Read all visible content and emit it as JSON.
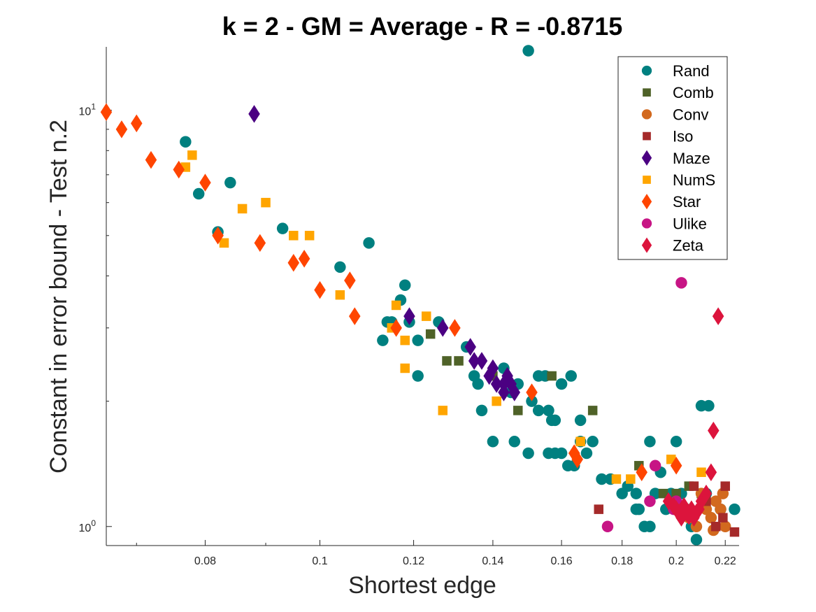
{
  "chart_data": {
    "type": "scatter",
    "title": "k = 2 - GM = Average - R = -0.8715",
    "xlabel": "Shortest edge",
    "ylabel": "Constant in error bound - Test n.2",
    "xscale": "log",
    "yscale": "log",
    "xlim": [
      0.066,
      0.226
    ],
    "ylim": [
      0.9,
      14.2
    ],
    "xticks": [
      0.08,
      0.1,
      0.12,
      0.14,
      0.16,
      0.18,
      0.2,
      0.22
    ],
    "xticklabels": [
      "0.08",
      "0.1",
      "0.12",
      "0.14",
      "0.16",
      "0.18",
      "0.2",
      "0.22"
    ],
    "yticks": [
      {
        "value": 1,
        "base": "10",
        "exp": "0"
      },
      {
        "value": 10,
        "base": "10",
        "exp": "1"
      }
    ],
    "legend_position": "top-right",
    "series": [
      {
        "name": "Rand",
        "marker": "circle",
        "color": "#008080",
        "points": [
          [
            0.15,
            13.9
          ],
          [
            0.077,
            8.4
          ],
          [
            0.079,
            6.3
          ],
          [
            0.084,
            6.7
          ],
          [
            0.082,
            5.1
          ],
          [
            0.093,
            5.2
          ],
          [
            0.104,
            4.2
          ],
          [
            0.11,
            4.8
          ],
          [
            0.118,
            3.8
          ],
          [
            0.117,
            3.5
          ],
          [
            0.115,
            3.1
          ],
          [
            0.114,
            3.1
          ],
          [
            0.119,
            3.1
          ],
          [
            0.126,
            3.1
          ],
          [
            0.113,
            2.8
          ],
          [
            0.121,
            2.8
          ],
          [
            0.133,
            2.7
          ],
          [
            0.121,
            2.3
          ],
          [
            0.135,
            2.3
          ],
          [
            0.136,
            2.2
          ],
          [
            0.143,
            2.4
          ],
          [
            0.145,
            2.1
          ],
          [
            0.147,
            2.2
          ],
          [
            0.151,
            2.0
          ],
          [
            0.153,
            2.3
          ],
          [
            0.155,
            2.3
          ],
          [
            0.153,
            1.9
          ],
          [
            0.156,
            1.9
          ],
          [
            0.158,
            1.8
          ],
          [
            0.16,
            2.2
          ],
          [
            0.163,
            2.3
          ],
          [
            0.166,
            1.8
          ],
          [
            0.157,
            1.8
          ],
          [
            0.137,
            1.9
          ],
          [
            0.14,
            1.6
          ],
          [
            0.146,
            1.6
          ],
          [
            0.15,
            1.5
          ],
          [
            0.156,
            1.5
          ],
          [
            0.158,
            1.5
          ],
          [
            0.16,
            1.5
          ],
          [
            0.162,
            1.4
          ],
          [
            0.164,
            1.4
          ],
          [
            0.166,
            1.6
          ],
          [
            0.168,
            1.5
          ],
          [
            0.17,
            1.6
          ],
          [
            0.173,
            1.3
          ],
          [
            0.176,
            1.3
          ],
          [
            0.18,
            1.2
          ],
          [
            0.182,
            1.25
          ],
          [
            0.185,
            1.2
          ],
          [
            0.185,
            1.1
          ],
          [
            0.186,
            1.1
          ],
          [
            0.188,
            1.0
          ],
          [
            0.19,
            1.0
          ],
          [
            0.19,
            1.6
          ],
          [
            0.192,
            1.2
          ],
          [
            0.194,
            1.35
          ],
          [
            0.196,
            1.1
          ],
          [
            0.198,
            1.2
          ],
          [
            0.2,
            1.6
          ],
          [
            0.202,
            1.2
          ],
          [
            0.204,
            1.1
          ],
          [
            0.206,
            1.0
          ],
          [
            0.208,
            0.93
          ],
          [
            0.21,
            1.95
          ],
          [
            0.213,
            1.95
          ],
          [
            0.212,
            1.2
          ],
          [
            0.218,
            1.1
          ],
          [
            0.224,
            1.1
          ]
        ]
      },
      {
        "name": "Comb",
        "marker": "square",
        "color": "#4f6228",
        "points": [
          [
            0.124,
            2.9
          ],
          [
            0.128,
            2.5
          ],
          [
            0.131,
            2.5
          ],
          [
            0.14,
            2.3
          ],
          [
            0.147,
            1.9
          ],
          [
            0.157,
            2.3
          ],
          [
            0.17,
            1.9
          ],
          [
            0.186,
            1.4
          ],
          [
            0.195,
            1.2
          ],
          [
            0.2,
            1.2
          ],
          [
            0.205,
            1.25
          ],
          [
            0.21,
            1.2
          ]
        ]
      },
      {
        "name": "Conv",
        "marker": "circle",
        "color": "#d2691e",
        "points": [
          [
            0.205,
            1.05
          ],
          [
            0.208,
            1.0
          ],
          [
            0.21,
            1.2
          ],
          [
            0.212,
            1.1
          ],
          [
            0.214,
            1.05
          ],
          [
            0.216,
            1.15
          ],
          [
            0.218,
            1.1
          ],
          [
            0.22,
            1.0
          ],
          [
            0.215,
            0.98
          ],
          [
            0.219,
            1.2
          ]
        ]
      },
      {
        "name": "Iso",
        "marker": "square",
        "color": "#a52a2a",
        "points": [
          [
            0.172,
            1.1
          ],
          [
            0.207,
            1.25
          ],
          [
            0.212,
            1.15
          ],
          [
            0.216,
            1.0
          ],
          [
            0.219,
            1.05
          ],
          [
            0.22,
            1.25
          ],
          [
            0.224,
            0.97
          ]
        ]
      },
      {
        "name": "Maze",
        "marker": "diamond",
        "color": "#4b0082",
        "points": [
          [
            0.088,
            9.8
          ],
          [
            0.119,
            3.2
          ],
          [
            0.127,
            3.0
          ],
          [
            0.134,
            2.7
          ],
          [
            0.135,
            2.5
          ],
          [
            0.137,
            2.5
          ],
          [
            0.139,
            2.3
          ],
          [
            0.14,
            2.4
          ],
          [
            0.141,
            2.2
          ],
          [
            0.143,
            2.2
          ],
          [
            0.143,
            2.1
          ],
          [
            0.144,
            2.3
          ],
          [
            0.145,
            2.2
          ],
          [
            0.146,
            2.1
          ]
        ]
      },
      {
        "name": "NumS",
        "marker": "square",
        "color": "#ffa500",
        "points": [
          [
            0.078,
            7.8
          ],
          [
            0.077,
            7.3
          ],
          [
            0.086,
            5.8
          ],
          [
            0.09,
            6.0
          ],
          [
            0.083,
            4.8
          ],
          [
            0.095,
            5.0
          ],
          [
            0.098,
            5.0
          ],
          [
            0.104,
            3.6
          ],
          [
            0.115,
            3.0
          ],
          [
            0.116,
            3.4
          ],
          [
            0.118,
            2.8
          ],
          [
            0.118,
            2.4
          ],
          [
            0.123,
            3.2
          ],
          [
            0.127,
            1.9
          ],
          [
            0.141,
            2.0
          ],
          [
            0.166,
            1.6
          ],
          [
            0.178,
            1.3
          ],
          [
            0.183,
            1.3
          ],
          [
            0.198,
            1.45
          ],
          [
            0.21,
            1.35
          ]
        ]
      },
      {
        "name": "Star",
        "marker": "diamond",
        "color": "#ff4500",
        "points": [
          [
            0.066,
            9.9
          ],
          [
            0.068,
            9.0
          ],
          [
            0.07,
            9.3
          ],
          [
            0.072,
            7.6
          ],
          [
            0.076,
            7.2
          ],
          [
            0.08,
            6.7
          ],
          [
            0.082,
            5.0
          ],
          [
            0.089,
            4.8
          ],
          [
            0.095,
            4.3
          ],
          [
            0.097,
            4.4
          ],
          [
            0.1,
            3.7
          ],
          [
            0.106,
            3.9
          ],
          [
            0.107,
            3.2
          ],
          [
            0.116,
            3.0
          ],
          [
            0.13,
            3.0
          ],
          [
            0.151,
            2.1
          ],
          [
            0.164,
            1.5
          ],
          [
            0.165,
            1.45
          ],
          [
            0.187,
            1.35
          ],
          [
            0.2,
            1.4
          ]
        ]
      },
      {
        "name": "Ulike",
        "marker": "circle",
        "color": "#c71585",
        "points": [
          [
            0.175,
            1.0
          ],
          [
            0.19,
            1.15
          ],
          [
            0.192,
            1.4
          ],
          [
            0.199,
            1.1
          ],
          [
            0.2,
            1.15
          ],
          [
            0.202,
            3.85
          ]
        ]
      },
      {
        "name": "Zeta",
        "marker": "diamond",
        "color": "#dc143c",
        "points": [
          [
            0.197,
            1.15
          ],
          [
            0.199,
            1.12
          ],
          [
            0.2,
            1.1
          ],
          [
            0.201,
            1.08
          ],
          [
            0.202,
            1.05
          ],
          [
            0.203,
            1.12
          ],
          [
            0.204,
            1.08
          ],
          [
            0.205,
            1.06
          ],
          [
            0.206,
            1.1
          ],
          [
            0.207,
            1.05
          ],
          [
            0.208,
            1.08
          ],
          [
            0.209,
            1.1
          ],
          [
            0.21,
            1.15
          ],
          [
            0.212,
            1.2
          ],
          [
            0.214,
            1.35
          ],
          [
            0.215,
            1.7
          ],
          [
            0.217,
            3.2
          ]
        ]
      }
    ]
  }
}
